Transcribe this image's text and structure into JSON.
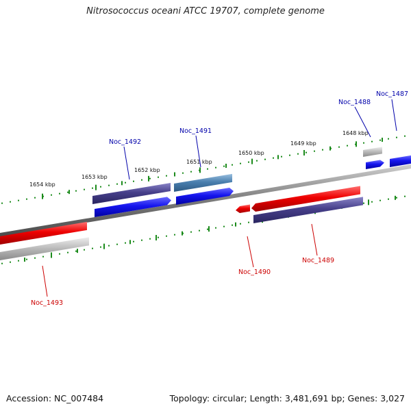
{
  "title": "Nitrosococcus oceani ATCC 19707, complete genome",
  "footer": {
    "accession": "Accession: NC_007484",
    "summary": "Topology: circular; Length: 3,481,691 bp; Genes: 3,027"
  },
  "colors": {
    "forward_strand": "#1515e8",
    "reverse_strand": "#e60000",
    "overlap_purple": "#463f8a",
    "steel_blue": "#4a7fae",
    "gray_gene": "#b8b8b8",
    "backbone": "#888888",
    "tick_green": "#1a8a1a",
    "label_blue": "#0000aa",
    "label_red": "#cc0000"
  },
  "ticks": [
    {
      "label": "1654 kbp"
    },
    {
      "label": "1653 kbp"
    },
    {
      "label": "1652 kbp"
    },
    {
      "label": "1651 kbp"
    },
    {
      "label": "1650 kbp"
    },
    {
      "label": "1649 kbp"
    },
    {
      "label": "1648 kbp"
    }
  ],
  "genes": [
    {
      "name": "Noc_1487"
    },
    {
      "name": "Noc_1488"
    },
    {
      "name": "Noc_1489"
    },
    {
      "name": "Noc_1490"
    },
    {
      "name": "Noc_1491"
    },
    {
      "name": "Noc_1492"
    },
    {
      "name": "Noc_1493"
    }
  ]
}
